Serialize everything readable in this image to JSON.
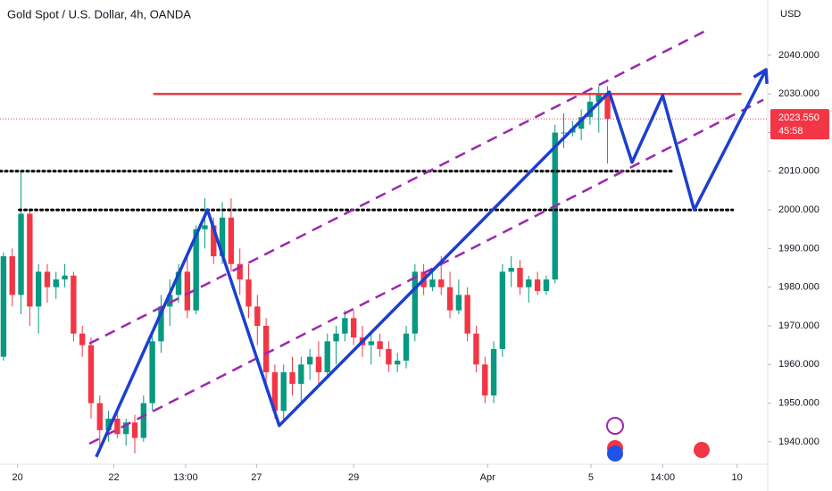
{
  "chart_data": {
    "type": "candlestick",
    "title": "Gold Spot / U.S. Dollar, 4h, OANDA",
    "y_axis_label": "USD",
    "up_color": "#089981",
    "down_color": "#f23645",
    "xlim": [
      -0.4,
      87.3
    ],
    "ylim": [
      1934.2,
      2054.3
    ],
    "xticks": [
      {
        "value": 1.6,
        "label": "20"
      },
      {
        "value": 12.6,
        "label": "22"
      },
      {
        "value": 20.8,
        "label": "13:00"
      },
      {
        "value": 28.9,
        "label": "27"
      },
      {
        "value": 40,
        "label": "29"
      },
      {
        "value": 55.3,
        "label": "Apr"
      },
      {
        "value": 67.1,
        "label": "5"
      },
      {
        "value": 75.3,
        "label": "14:00"
      },
      {
        "value": 83.8,
        "label": "10"
      }
    ],
    "yticks": [
      {
        "value": 1940,
        "label": "1940.000"
      },
      {
        "value": 1950,
        "label": "1950.000"
      },
      {
        "value": 1960,
        "label": "1960.000"
      },
      {
        "value": 1970,
        "label": "1970.000"
      },
      {
        "value": 1980,
        "label": "1980.000"
      },
      {
        "value": 1990,
        "label": "1990.000"
      },
      {
        "value": 2000,
        "label": "2000.000"
      },
      {
        "value": 2010,
        "label": "2010.000"
      },
      {
        "value": 2020,
        "label": "2020.000"
      },
      {
        "value": 2030,
        "label": "2030.000"
      },
      {
        "value": 2040,
        "label": "2040.000"
      }
    ],
    "open": [
      1962,
      1988,
      1978,
      1999,
      1975,
      1984,
      1980,
      1982,
      1983,
      1968,
      1965,
      1950,
      1943,
      1946,
      1942,
      1945,
      1941,
      1950,
      1966,
      1975,
      1978,
      1984,
      1974,
      1995,
      1996,
      1988,
      1998,
      1986,
      1982,
      1975,
      1970,
      1958,
      1948,
      1958,
      1955,
      1960,
      1962,
      1958,
      1966,
      1968,
      1972,
      1967,
      1965,
      1966,
      1964,
      1960,
      1961,
      1968,
      1984,
      1980,
      1982,
      1980,
      1974,
      1978,
      1968,
      1960,
      1952,
      1964,
      1984,
      1985,
      1980,
      1982,
      1979,
      1982,
      2020,
      2020,
      2021,
      2024,
      2028,
      2030
    ],
    "high": [
      1989,
      1990,
      2010,
      2000,
      1986,
      1986,
      1984,
      1986,
      1984,
      1970,
      1967,
      1952,
      1948,
      1948,
      1946,
      1947,
      1952,
      1968,
      1978,
      1982,
      1986,
      1988,
      1996,
      2003,
      1998,
      2002,
      2003,
      1990,
      1986,
      1978,
      1972,
      1960,
      1960,
      1962,
      1962,
      1964,
      1966,
      1968,
      1970,
      1974,
      1974,
      1970,
      1968,
      1968,
      1966,
      1963,
      1970,
      1986,
      1986,
      1984,
      1988,
      1984,
      1982,
      1980,
      1970,
      1962,
      1966,
      1986,
      1988,
      1987,
      1983,
      1984,
      1983,
      2022,
      2025,
      2023,
      2026,
      2030,
      2032,
      2032
    ],
    "low": [
      1961,
      1975,
      1973,
      1970,
      1968,
      1976,
      1977,
      1980,
      1966,
      1962,
      1946,
      1938,
      1940,
      1941,
      1939,
      1937,
      1940,
      1948,
      1963,
      1970,
      1976,
      1972,
      1973,
      1990,
      1986,
      1986,
      1984,
      1978,
      1972,
      1965,
      1955,
      1946,
      1945,
      1952,
      1950,
      1956,
      1955,
      1957,
      1960,
      1966,
      1965,
      1962,
      1960,
      1962,
      1958,
      1958,
      1959,
      1966,
      1978,
      1979,
      1978,
      1972,
      1973,
      1966,
      1958,
      1950,
      1950,
      1962,
      1980,
      1978,
      1976,
      1978,
      1978,
      1981,
      2016,
      2019,
      2018,
      2022,
      2020,
      2012
    ],
    "close": [
      1988,
      1978,
      1999,
      1975,
      1984,
      1980,
      1982,
      1983,
      1968,
      1965,
      1950,
      1943,
      1946,
      1942,
      1945,
      1941,
      1950,
      1966,
      1975,
      1978,
      1984,
      1974,
      1995,
      1996,
      1988,
      1998,
      1986,
      1982,
      1975,
      1970,
      1958,
      1948,
      1958,
      1955,
      1960,
      1962,
      1958,
      1966,
      1968,
      1972,
      1967,
      1965,
      1966,
      1964,
      1960,
      1961,
      1968,
      1984,
      1980,
      1982,
      1980,
      1974,
      1978,
      1968,
      1960,
      1952,
      1964,
      1984,
      1985,
      1980,
      1982,
      1979,
      1982,
      2020,
      2020,
      2021,
      2024,
      2028,
      2030,
      2023.55
    ],
    "last_price": {
      "value": 2023.55,
      "label": "2023.550"
    },
    "countdown": "45:58",
    "hlines": [
      {
        "value": 2030,
        "from": 17.1,
        "to": 84.3,
        "color": "#f23645",
        "style": "solid"
      },
      {
        "value": 2010,
        "from": -0.4,
        "to": 76.6,
        "color": "#000000",
        "style": "dotted"
      },
      {
        "value": 2000,
        "from": 1.8,
        "to": 83.3,
        "color": "#000000",
        "style": "dotted"
      }
    ],
    "channels": [
      {
        "x": [
          9.8,
          80.7
        ],
        "y": [
          1965.4,
          2046.9
        ],
        "color": "#9c27b0"
      },
      {
        "x": [
          9.8,
          86.8
        ],
        "y": [
          1939.5,
          2028.5
        ],
        "color": "#9c27b0"
      }
    ],
    "path": {
      "x": [
        10.6,
        23.3,
        31.5,
        69.2,
        71.8,
        75.3,
        78.9,
        87.1
      ],
      "y": [
        1936.1,
        2000,
        1944.2,
        2030.5,
        2012.3,
        2029.6,
        2000,
        2036.3
      ],
      "color": "#1c3fd1"
    }
  }
}
